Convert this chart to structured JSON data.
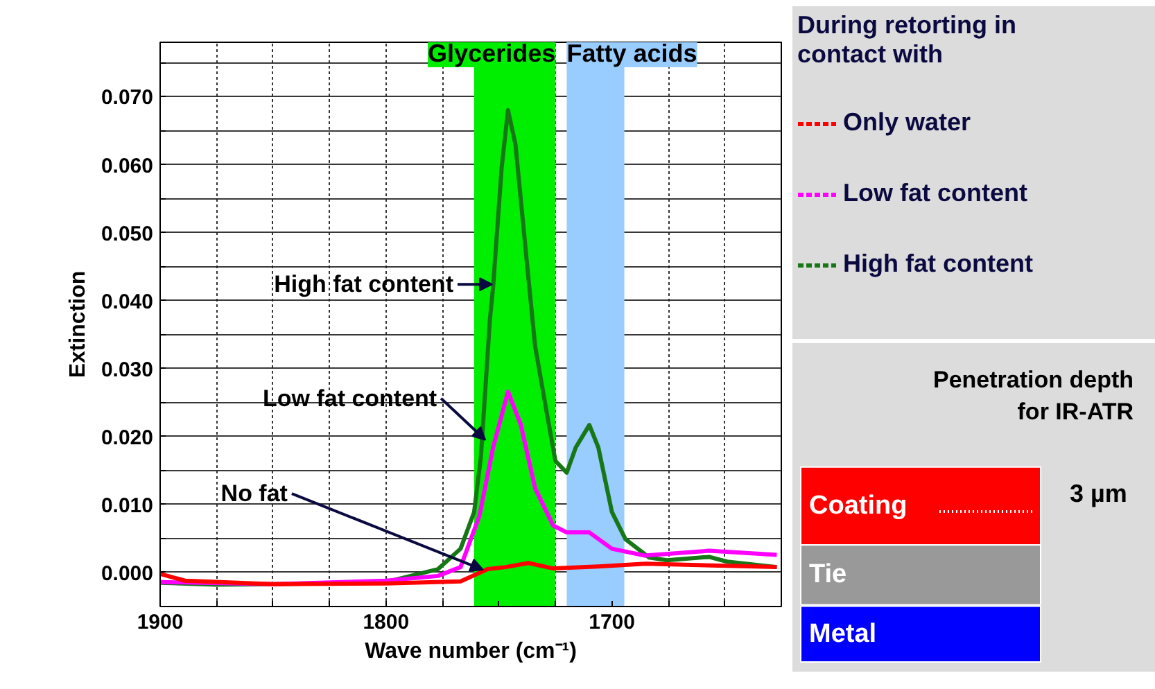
{
  "chart_data": {
    "type": "line",
    "xlabel": "Wave number (cm⁻¹)",
    "ylabel": "Extinction",
    "legend_title": "During retorting in\ncontact with",
    "legend": "right",
    "grid": true,
    "xlim": [
      1900,
      1625
    ],
    "ylim": [
      -0.005,
      0.078
    ],
    "xticks": [
      1900,
      {
        "value": 1875,
        "label": null
      },
      {
        "value": 1850,
        "label": null
      },
      {
        "value": 1825,
        "label": null
      },
      1800,
      {
        "value": 1775,
        "label": null
      },
      {
        "value": 1750,
        "label": null
      },
      {
        "value": 1725,
        "label": null
      },
      1700,
      {
        "value": 1675,
        "label": null
      },
      {
        "value": 1650,
        "label": null
      }
    ],
    "yticks": [
      {
        "value": 0.0,
        "label": "0.000"
      },
      {
        "value": 0.005,
        "label": null
      },
      {
        "value": 0.01,
        "label": "0.010"
      },
      {
        "value": 0.015,
        "label": null
      },
      {
        "value": 0.02,
        "label": "0.020"
      },
      {
        "value": 0.025,
        "label": null
      },
      {
        "value": 0.03,
        "label": "0.030"
      },
      {
        "value": 0.035,
        "label": null
      },
      {
        "value": 0.04,
        "label": "0.040"
      },
      {
        "value": 0.045,
        "label": null
      },
      {
        "value": 0.05,
        "label": "0.050"
      },
      {
        "value": 0.055,
        "label": null
      },
      {
        "value": 0.06,
        "label": "0.060"
      },
      {
        "value": 0.065,
        "label": null
      },
      {
        "value": 0.07,
        "label": "0.070"
      },
      {
        "value": 0.075,
        "label": null
      }
    ],
    "series": [
      {
        "name": "Only water",
        "color": "#ff0000",
        "x": [
          1900,
          1889,
          1850,
          1800,
          1767,
          1755,
          1747,
          1737,
          1726,
          1706,
          1685,
          1627
        ],
        "values": [
          -0.0002,
          -0.0012,
          -0.0017,
          -0.0016,
          -0.0013,
          0.0005,
          0.0008,
          0.0014,
          0.0006,
          0.0009,
          0.0013,
          0.0008
        ]
      },
      {
        "name": "Low fat content",
        "color": "#ff00ff",
        "x": [
          1900,
          1850,
          1800,
          1777,
          1767,
          1758.7,
          1752.6,
          1746,
          1740.4,
          1734,
          1726,
          1720,
          1710,
          1700,
          1685.5,
          1657,
          1627
        ],
        "values": [
          -0.0014,
          -0.0017,
          -0.0012,
          -0.0005,
          0.0008,
          0.0083,
          0.0184,
          0.0266,
          0.0218,
          0.0124,
          0.0069,
          0.0059,
          0.0059,
          0.0035,
          0.0025,
          0.0032,
          0.0026
        ]
      },
      {
        "name": "High fat content",
        "color": "#177717",
        "x": [
          1900,
          1875,
          1850,
          1800,
          1777,
          1767,
          1761,
          1758,
          1754,
          1752.6,
          1748.8,
          1746,
          1742.7,
          1737.4,
          1734,
          1729,
          1725,
          1720,
          1716,
          1710,
          1706,
          1700,
          1694,
          1683.5,
          1675.6,
          1657,
          1649,
          1627
        ],
        "values": [
          -0.0015,
          -0.0018,
          -0.0017,
          -0.0014,
          0.0005,
          0.0035,
          0.0089,
          0.017,
          0.0373,
          0.042,
          0.0596,
          0.068,
          0.063,
          0.0448,
          0.0333,
          0.0238,
          0.0164,
          0.0147,
          0.0184,
          0.0217,
          0.0184,
          0.0089,
          0.0049,
          0.0022,
          0.0018,
          0.0023,
          0.0016,
          0.0008
        ]
      }
    ],
    "bands": [
      {
        "axis": "x",
        "from": 1761,
        "to": 1725,
        "label": "Glycerides",
        "color": "#00ee00"
      },
      {
        "axis": "x",
        "from": 1720,
        "to": 1694.5,
        "label": "Fatty acids",
        "color": "#99ccff"
      }
    ],
    "annotations": [
      {
        "text": "High fat content",
        "x": 1753,
        "y": 0.0424
      },
      {
        "text": "Low fat content",
        "x": 1756,
        "y": 0.0195
      },
      {
        "text": "No fat",
        "x": 1757,
        "y": 0.0004
      },
      "Penetration depth\nfor IR-ATR",
      "Coating",
      "Tie",
      "Metal",
      "3 µm"
    ]
  }
}
